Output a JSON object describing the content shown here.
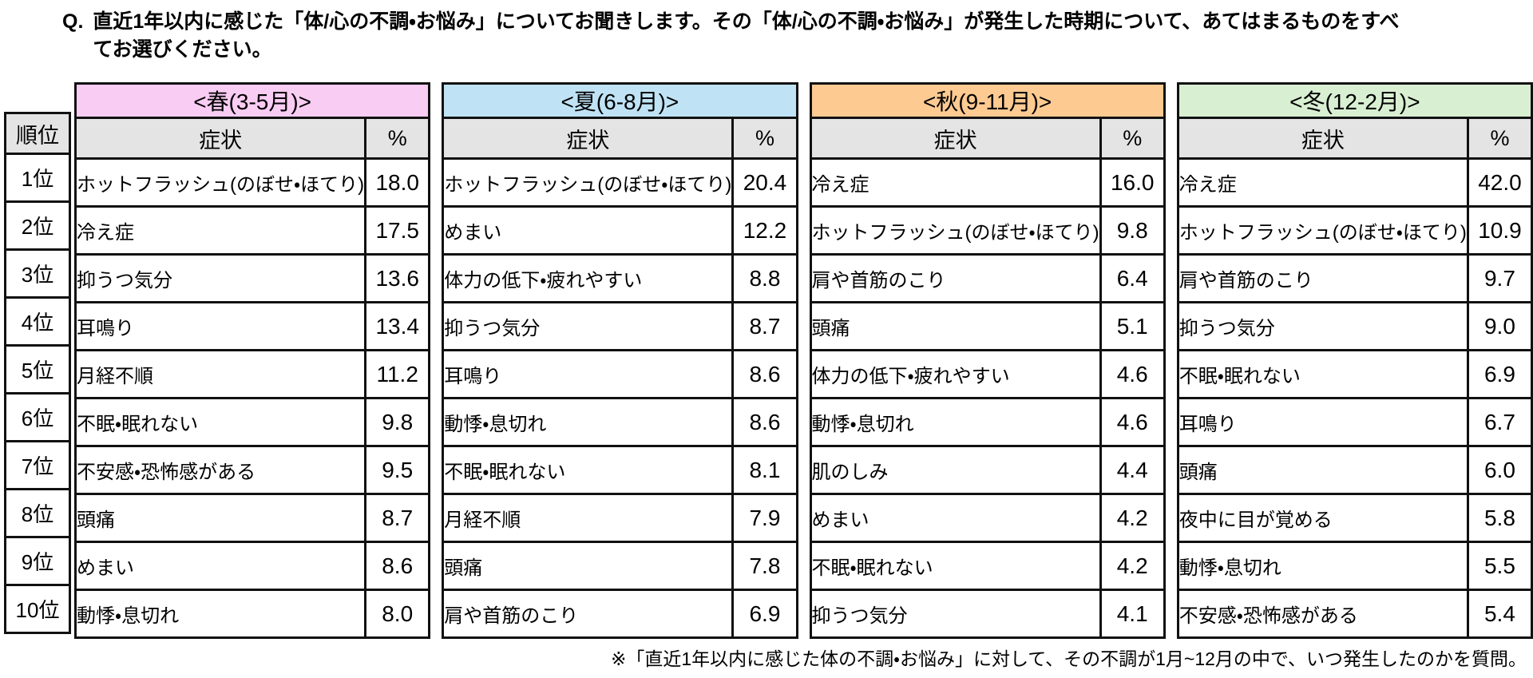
{
  "question": {
    "prefix": "Q.",
    "text": "直近1年以内に感じた「体/心の不調・お悩み」についてお聞きします。その「体/心の不調・お悩み」が発生した時期について、あてはまるものをすべてお選びください。"
  },
  "rank": {
    "header": "順位",
    "labels": [
      "1位",
      "2位",
      "3位",
      "4位",
      "5位",
      "6位",
      "7位",
      "8位",
      "9位",
      "10位"
    ]
  },
  "columns": {
    "symptom": "症状",
    "percent": "%"
  },
  "presentation": {
    "season_ids": [
      "spring",
      "summer",
      "autumn",
      "winter"
    ],
    "season_colors": [
      "#f9ccf3",
      "#bfe3f4",
      "#fdca92",
      "#d9efd2"
    ],
    "header_grey": "#e4e4e4",
    "border_color": "#111111"
  },
  "chart_data": [
    {
      "type": "table",
      "title": "<春(3-5月)>",
      "columns": [
        "順位",
        "症状",
        "%"
      ],
      "rows": [
        [
          "1位",
          "ホットフラッシュ(のぼせ・ほてり)",
          18.0
        ],
        [
          "2位",
          "冷え症",
          17.5
        ],
        [
          "3位",
          "抑うつ気分",
          13.6
        ],
        [
          "4位",
          "耳鳴り",
          13.4
        ],
        [
          "5位",
          "月経不順",
          11.2
        ],
        [
          "6位",
          "不眠・眠れない",
          9.8
        ],
        [
          "7位",
          "不安感・恐怖感がある",
          9.5
        ],
        [
          "8位",
          "頭痛",
          8.7
        ],
        [
          "9位",
          "めまい",
          8.6
        ],
        [
          "10位",
          "動悸・息切れ",
          8.0
        ]
      ]
    },
    {
      "type": "table",
      "title": "<夏(6-8月)>",
      "columns": [
        "順位",
        "症状",
        "%"
      ],
      "rows": [
        [
          "1位",
          "ホットフラッシュ(のぼせ・ほてり)",
          20.4
        ],
        [
          "2位",
          "めまい",
          12.2
        ],
        [
          "3位",
          "体力の低下・疲れやすい",
          8.8
        ],
        [
          "4位",
          "抑うつ気分",
          8.7
        ],
        [
          "5位",
          "耳鳴り",
          8.6
        ],
        [
          "6位",
          "動悸・息切れ",
          8.6
        ],
        [
          "7位",
          "不眠・眠れない",
          8.1
        ],
        [
          "8位",
          "月経不順",
          7.9
        ],
        [
          "9位",
          "頭痛",
          7.8
        ],
        [
          "10位",
          "肩や首筋のこり",
          6.9
        ]
      ]
    },
    {
      "type": "table",
      "title": "<秋(9-11月)>",
      "columns": [
        "順位",
        "症状",
        "%"
      ],
      "rows": [
        [
          "1位",
          "冷え症",
          16.0
        ],
        [
          "2位",
          "ホットフラッシュ(のぼせ・ほてり)",
          9.8
        ],
        [
          "3位",
          "肩や首筋のこり",
          6.4
        ],
        [
          "4位",
          "頭痛",
          5.1
        ],
        [
          "5位",
          "体力の低下・疲れやすい",
          4.6
        ],
        [
          "6位",
          "動悸・息切れ",
          4.6
        ],
        [
          "7位",
          "肌のしみ",
          4.4
        ],
        [
          "8位",
          "めまい",
          4.2
        ],
        [
          "9位",
          "不眠・眠れない",
          4.2
        ],
        [
          "10位",
          "抑うつ気分",
          4.1
        ]
      ]
    },
    {
      "type": "table",
      "title": "<冬(12-2月)>",
      "columns": [
        "順位",
        "症状",
        "%"
      ],
      "rows": [
        [
          "1位",
          "冷え症",
          42.0
        ],
        [
          "2位",
          "ホットフラッシュ(のぼせ・ほてり)",
          10.9
        ],
        [
          "3位",
          "肩や首筋のこり",
          9.7
        ],
        [
          "4位",
          "抑うつ気分",
          9.0
        ],
        [
          "5位",
          "不眠・眠れない",
          6.9
        ],
        [
          "6位",
          "耳鳴り",
          6.7
        ],
        [
          "7位",
          "頭痛",
          6.0
        ],
        [
          "8位",
          "夜中に目が覚める",
          5.8
        ],
        [
          "9位",
          "動悸・息切れ",
          5.5
        ],
        [
          "10位",
          "不安感・恐怖感がある",
          5.4
        ]
      ]
    }
  ],
  "footnote": "※「直近1年以内に感じた体の不調・お悩み」に対して、その不調が1月~12月の中で、いつ発生したのかを質問。"
}
